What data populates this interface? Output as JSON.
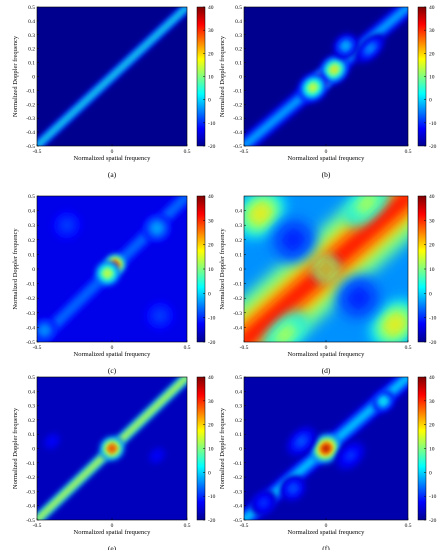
{
  "colorbar": {
    "ticks": [
      "40",
      "30",
      "20",
      "10",
      "0",
      "-10",
      "-20"
    ],
    "colors": [
      "#00008f",
      "#0000ff",
      "#0080ff",
      "#00ffff",
      "#80ff80",
      "#ffff00",
      "#ff8000",
      "#ff0000",
      "#800000"
    ]
  },
  "chart_data": [
    {
      "type": "heatmap",
      "caption": "(a)",
      "xlabel": "Normalized spatial frequency",
      "ylabel": "Normalized Doppler frequency",
      "xticks": [
        "-0.5",
        "0",
        "0.5"
      ],
      "yticks": [
        "0.5",
        "0.4",
        "0.3",
        "0.2",
        "0.1",
        "0",
        "-0.1",
        "-0.2",
        "-0.3",
        "-0.4",
        "-0.5"
      ],
      "xlim": [
        -0.5,
        0.5
      ],
      "ylim": [
        -0.5,
        0.5
      ],
      "zlim": [
        -20,
        40
      ],
      "background_level": -20,
      "ridge": {
        "slope": 1,
        "peak_level": 5,
        "width": 0.012
      },
      "blobs": []
    },
    {
      "type": "heatmap",
      "caption": "(b)",
      "xlabel": "Normalized spatial frequency",
      "ylabel": "Normalized Doppler frequency",
      "xticks": [
        "-0.5",
        "0",
        "0.5"
      ],
      "yticks": [
        "0.5",
        "0.4",
        "0.3",
        "0.2",
        "0.1",
        "0",
        "-0.1",
        "-0.2",
        "-0.3",
        "-0.4",
        "-0.5"
      ],
      "xlim": [
        -0.5,
        0.5
      ],
      "ylim": [
        -0.5,
        0.5
      ],
      "zlim": [
        -20,
        40
      ],
      "background_level": -20,
      "ridge": {
        "slope": 1,
        "peak_level": -2,
        "width": 0.02
      },
      "blobs": [
        {
          "x": -0.02,
          "y": -0.02,
          "level": 38,
          "sx": 0.05,
          "sy": 0.05
        },
        {
          "x": 0.05,
          "y": 0.05,
          "level": 20,
          "sx": 0.07,
          "sy": 0.07
        },
        {
          "x": -0.08,
          "y": -0.08,
          "level": 18,
          "sx": 0.07,
          "sy": 0.07
        },
        {
          "x": 0.12,
          "y": 0.22,
          "level": 0,
          "sx": 0.06,
          "sy": 0.06
        },
        {
          "x": 0.27,
          "y": 0.2,
          "level": -3,
          "sx": 0.08,
          "sy": 0.05
        }
      ]
    },
    {
      "type": "heatmap",
      "caption": "(c)",
      "xlabel": "Normalized spatial frequency",
      "ylabel": "Normalized Doppler frequency",
      "xticks": [
        "-0.5",
        "0",
        "0.5"
      ],
      "yticks": [
        "0.5",
        "0.4",
        "0.3",
        "0.2",
        "0.1",
        "0",
        "-0.1",
        "-0.2",
        "-0.3",
        "-0.4",
        "-0.5"
      ],
      "xlim": [
        -0.5,
        0.5
      ],
      "ylim": [
        -0.5,
        0.5
      ],
      "zlim": [
        -20,
        40
      ],
      "background_level": -14,
      "ridge": {
        "slope": 1,
        "peak_level": -6,
        "width": 0.02
      },
      "blobs": [
        {
          "x": 0.02,
          "y": 0.03,
          "level": 38,
          "sx": 0.05,
          "sy": 0.05
        },
        {
          "x": -0.03,
          "y": -0.03,
          "level": 18,
          "sx": 0.06,
          "sy": 0.06
        },
        {
          "x": -0.45,
          "y": -0.42,
          "level": -3,
          "sx": 0.06,
          "sy": 0.06
        },
        {
          "x": 0.3,
          "y": 0.28,
          "level": -2,
          "sx": 0.07,
          "sy": 0.07
        },
        {
          "x": -0.3,
          "y": 0.3,
          "level": -9,
          "sx": 0.08,
          "sy": 0.08
        },
        {
          "x": 0.32,
          "y": -0.32,
          "level": -9,
          "sx": 0.08,
          "sy": 0.08
        }
      ]
    },
    {
      "type": "heatmap",
      "caption": "(d)",
      "xlabel": "Normalized spatial frequency",
      "ylabel": "Normalized Doppler frequency",
      "xticks": [
        "-0.5",
        "0",
        "0.5"
      ],
      "yticks": [
        "0.4",
        "0.3",
        "0.2",
        "0.1",
        "0",
        "-0.1",
        "-0.2",
        "-0.3",
        "-0.4"
      ],
      "xlim": [
        -0.5,
        0.5
      ],
      "ylim": [
        -0.5,
        0.5
      ],
      "zlim": [
        -20,
        40
      ],
      "background_level": -4,
      "ridge": {
        "slope": 1,
        "peak_level": 32,
        "width": 0.08
      },
      "blobs": [
        {
          "x": 0.0,
          "y": 0.0,
          "level": 38,
          "sx": 0.05,
          "sy": 0.05
        },
        {
          "x": -0.4,
          "y": 0.38,
          "level": 22,
          "sx": 0.12,
          "sy": 0.1
        },
        {
          "x": 0.42,
          "y": -0.38,
          "level": 22,
          "sx": 0.12,
          "sy": 0.1
        },
        {
          "x": 0.25,
          "y": 0.45,
          "level": 18,
          "sx": 0.12,
          "sy": 0.06
        },
        {
          "x": -0.25,
          "y": -0.45,
          "level": 18,
          "sx": 0.12,
          "sy": 0.06
        },
        {
          "x": -0.2,
          "y": 0.2,
          "level": -12,
          "sx": 0.1,
          "sy": 0.1
        },
        {
          "x": 0.2,
          "y": -0.2,
          "level": -12,
          "sx": 0.1,
          "sy": 0.1
        }
      ]
    },
    {
      "type": "heatmap",
      "caption": "(e)",
      "xlabel": "Normalized spatial frequency",
      "ylabel": "Normalized Doppler frequency",
      "xticks": [
        "-0.5",
        "0",
        "0.5"
      ],
      "yticks": [
        "0.5",
        "0.4",
        "0.3",
        "0.2",
        "0.1",
        "0",
        "-0.1",
        "-0.2",
        "-0.3",
        "-0.4",
        "-0.5"
      ],
      "xlim": [
        -0.5,
        0.5
      ],
      "ylim": [
        -0.5,
        0.5
      ],
      "zlim": [
        -20,
        40
      ],
      "background_level": -17,
      "ridge": {
        "slope": 1,
        "peak_level": 18,
        "width": 0.013
      },
      "blobs": [
        {
          "x": 0.0,
          "y": 0.0,
          "level": 36,
          "sx": 0.06,
          "sy": 0.06
        },
        {
          "x": -0.4,
          "y": 0.05,
          "level": -12,
          "sx": 0.05,
          "sy": 0.04
        },
        {
          "x": 0.3,
          "y": -0.05,
          "level": -12,
          "sx": 0.05,
          "sy": 0.04
        }
      ]
    },
    {
      "type": "heatmap",
      "caption": "(f)",
      "xlabel": "Normalized spatial frequency",
      "ylabel": "Normalized Doppler frequency",
      "xticks": [
        "-0.5",
        "0",
        "0.5"
      ],
      "yticks": [
        "0.5",
        "0.4",
        "0.3",
        "0.2",
        "0.1",
        "0",
        "-0.1",
        "-0.2",
        "-0.3",
        "-0.4",
        "-0.5"
      ],
      "xlim": [
        -0.5,
        0.5
      ],
      "ylim": [
        -0.5,
        0.5
      ],
      "zlim": [
        -20,
        40
      ],
      "background_level": -18,
      "ridge": {
        "slope": 1,
        "peak_level": 0,
        "width": 0.02
      },
      "blobs": [
        {
          "x": 0.0,
          "y": 0.0,
          "level": 40,
          "sx": 0.07,
          "sy": 0.07
        },
        {
          "x": 0.35,
          "y": 0.33,
          "level": 5,
          "sx": 0.05,
          "sy": 0.05
        },
        {
          "x": -0.15,
          "y": 0.05,
          "level": -7,
          "sx": 0.08,
          "sy": 0.06
        },
        {
          "x": -0.2,
          "y": -0.28,
          "level": -7,
          "sx": 0.06,
          "sy": 0.06
        },
        {
          "x": 0.15,
          "y": -0.05,
          "level": -9,
          "sx": 0.08,
          "sy": 0.06
        },
        {
          "x": -0.38,
          "y": -0.38,
          "level": -9,
          "sx": 0.06,
          "sy": 0.06
        }
      ]
    }
  ]
}
